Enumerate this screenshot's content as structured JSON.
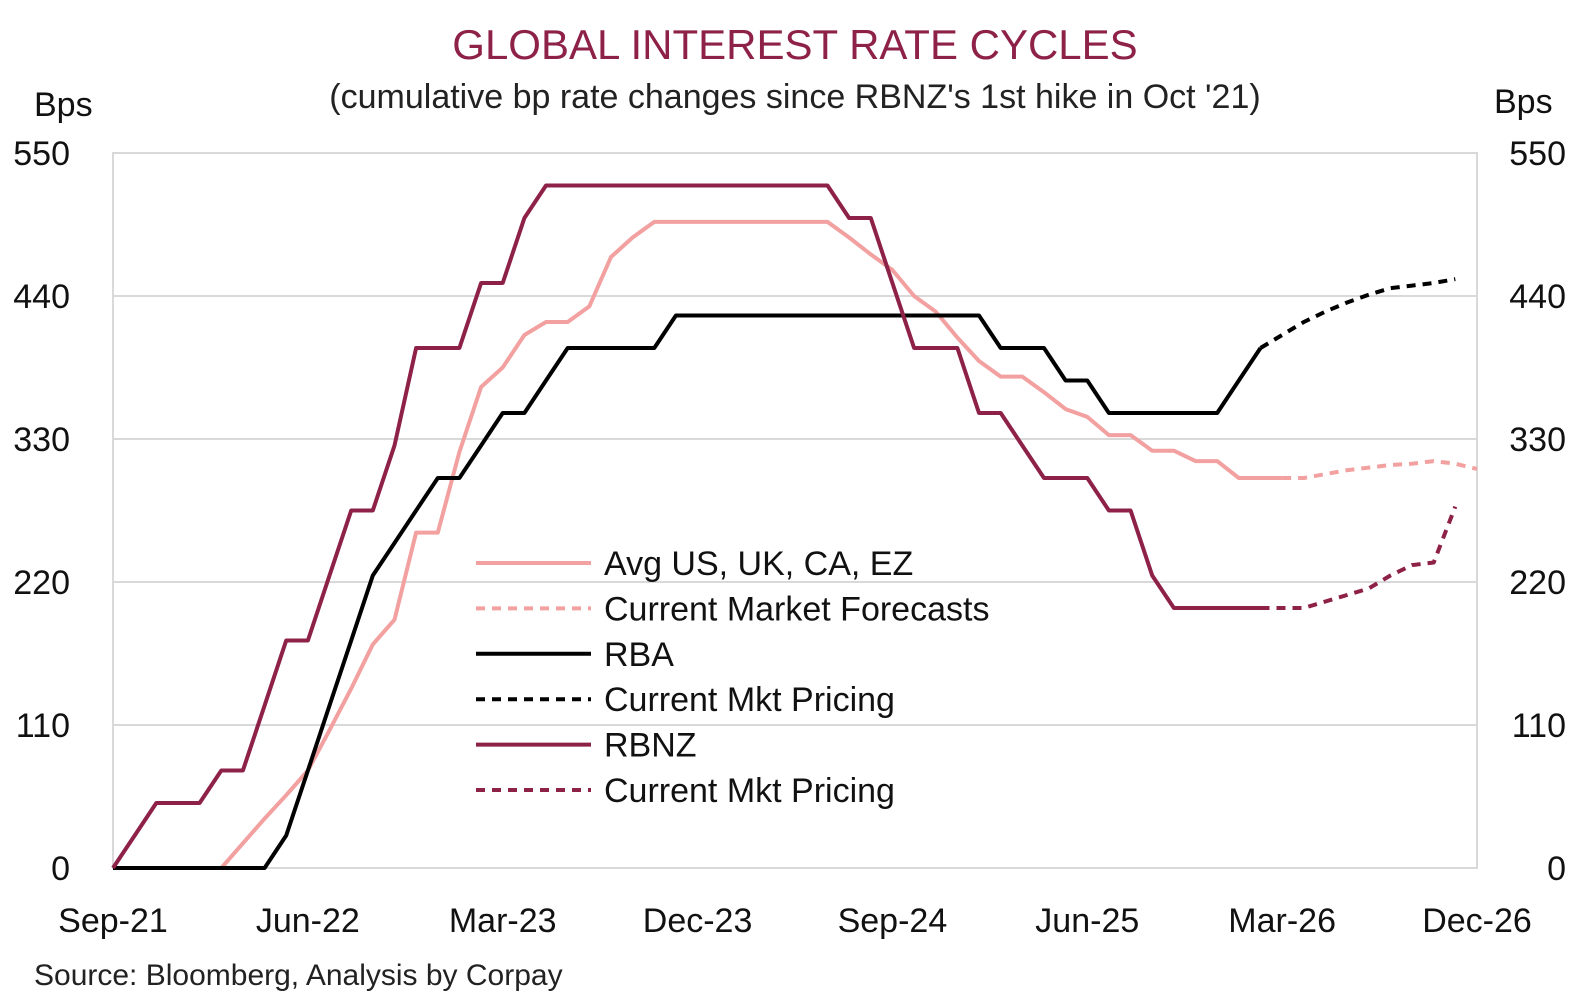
{
  "chart_data": {
    "type": "line",
    "title": "GLOBAL INTEREST RATE CYCLES",
    "subtitle": "(cumulative bp rate changes since RBNZ's 1st hike in Oct '21)",
    "ylabel_left": "Bps",
    "ylabel_right": "Bps",
    "ylim": [
      0,
      550
    ],
    "yticks": [
      0,
      110,
      220,
      330,
      440,
      550
    ],
    "xlim": [
      "2021-09",
      "2026-12"
    ],
    "xticks": [
      "Sep-21",
      "Jun-22",
      "Mar-23",
      "Dec-23",
      "Sep-24",
      "Jun-25",
      "Mar-26",
      "Dec-26"
    ],
    "grid": "horizontal",
    "legend_position": "center",
    "source": "Source: Bloomberg, Analysis by Corpay",
    "colors": {
      "avg": "#f2a0a0",
      "rba": "#000000",
      "rbnz": "#8e2148",
      "title": "#8e2148"
    },
    "series": [
      {
        "name": "Avg US, UK, CA, EZ",
        "style": "solid",
        "color": "#f2a0a0",
        "points": [
          [
            "2021-09",
            0
          ],
          [
            "2022-02",
            0
          ],
          [
            "2022-03",
            19
          ],
          [
            "2022-04",
            38
          ],
          [
            "2022-05",
            56
          ],
          [
            "2022-06",
            75
          ],
          [
            "2022-07",
            106
          ],
          [
            "2022-08",
            138
          ],
          [
            "2022-09",
            172
          ],
          [
            "2022-10",
            191
          ],
          [
            "2022-11",
            258
          ],
          [
            "2022-12",
            258
          ],
          [
            "2023-01",
            320
          ],
          [
            "2023-02",
            370
          ],
          [
            "2023-03",
            385
          ],
          [
            "2023-04",
            410
          ],
          [
            "2023-05",
            420
          ],
          [
            "2023-06",
            420
          ],
          [
            "2023-07",
            432
          ],
          [
            "2023-08",
            470
          ],
          [
            "2023-09",
            485
          ],
          [
            "2023-10",
            497
          ],
          [
            "2023-11",
            497
          ],
          [
            "2023-12",
            497
          ],
          [
            "2024-01",
            497
          ],
          [
            "2024-02",
            497
          ],
          [
            "2024-03",
            497
          ],
          [
            "2024-04",
            497
          ],
          [
            "2024-05",
            497
          ],
          [
            "2024-06",
            497
          ],
          [
            "2024-07",
            485
          ],
          [
            "2024-08",
            472
          ],
          [
            "2024-09",
            460
          ],
          [
            "2024-10",
            440
          ],
          [
            "2024-11",
            428
          ],
          [
            "2024-12",
            408
          ],
          [
            "2025-01",
            390
          ],
          [
            "2025-02",
            378
          ],
          [
            "2025-03",
            378
          ],
          [
            "2025-04",
            366
          ],
          [
            "2025-05",
            353
          ],
          [
            "2025-06",
            347
          ],
          [
            "2025-07",
            333
          ],
          [
            "2025-08",
            333
          ],
          [
            "2025-09",
            321
          ],
          [
            "2025-10",
            321
          ],
          [
            "2025-11",
            313
          ],
          [
            "2025-12",
            313
          ],
          [
            "2026-01",
            300
          ],
          [
            "2026-02",
            300
          ],
          [
            "2026-03",
            300
          ]
        ]
      },
      {
        "name": "Current Market Forecasts",
        "style": "dashed",
        "color": "#f2a0a0",
        "points": [
          [
            "2026-03",
            300
          ],
          [
            "2026-04",
            300
          ],
          [
            "2026-05",
            303
          ],
          [
            "2026-06",
            306
          ],
          [
            "2026-07",
            308
          ],
          [
            "2026-08",
            310
          ],
          [
            "2026-09",
            311
          ],
          [
            "2026-10",
            313
          ],
          [
            "2026-11",
            311
          ],
          [
            "2026-12",
            307
          ]
        ]
      },
      {
        "name": "RBA",
        "style": "solid",
        "color": "#000000",
        "points": [
          [
            "2021-09",
            0
          ],
          [
            "2022-04",
            0
          ],
          [
            "2022-05",
            25
          ],
          [
            "2022-06",
            75
          ],
          [
            "2022-07",
            125
          ],
          [
            "2022-08",
            175
          ],
          [
            "2022-09",
            225
          ],
          [
            "2022-10",
            250
          ],
          [
            "2022-11",
            275
          ],
          [
            "2022-12",
            300
          ],
          [
            "2023-01",
            300
          ],
          [
            "2023-02",
            325
          ],
          [
            "2023-03",
            350
          ],
          [
            "2023-04",
            350
          ],
          [
            "2023-05",
            375
          ],
          [
            "2023-06",
            400
          ],
          [
            "2023-07",
            400
          ],
          [
            "2023-08",
            400
          ],
          [
            "2023-09",
            400
          ],
          [
            "2023-10",
            400
          ],
          [
            "2023-11",
            425
          ],
          [
            "2023-12",
            425
          ],
          [
            "2024-01",
            425
          ],
          [
            "2024-02",
            425
          ],
          [
            "2024-03",
            425
          ],
          [
            "2024-04",
            425
          ],
          [
            "2024-05",
            425
          ],
          [
            "2024-06",
            425
          ],
          [
            "2024-07",
            425
          ],
          [
            "2024-08",
            425
          ],
          [
            "2024-09",
            425
          ],
          [
            "2024-10",
            425
          ],
          [
            "2024-11",
            425
          ],
          [
            "2024-12",
            425
          ],
          [
            "2025-01",
            425
          ],
          [
            "2025-02",
            400
          ],
          [
            "2025-03",
            400
          ],
          [
            "2025-04",
            400
          ],
          [
            "2025-05",
            375
          ],
          [
            "2025-06",
            375
          ],
          [
            "2025-07",
            350
          ],
          [
            "2025-08",
            350
          ],
          [
            "2025-09",
            350
          ],
          [
            "2025-10",
            350
          ],
          [
            "2025-11",
            350
          ],
          [
            "2025-12",
            350
          ],
          [
            "2026-01",
            375
          ],
          [
            "2026-02",
            400
          ]
        ]
      },
      {
        "name": "Current Mkt Pricing",
        "style": "dashed",
        "color": "#000000",
        "points": [
          [
            "2026-02",
            400
          ],
          [
            "2026-03",
            410
          ],
          [
            "2026-04",
            420
          ],
          [
            "2026-05",
            428
          ],
          [
            "2026-06",
            435
          ],
          [
            "2026-07",
            441
          ],
          [
            "2026-08",
            446
          ],
          [
            "2026-09",
            448
          ],
          [
            "2026-10",
            450
          ],
          [
            "2026-11",
            453
          ]
        ]
      },
      {
        "name": "RBNZ",
        "style": "solid",
        "color": "#8e2148",
        "points": [
          [
            "2021-09",
            0
          ],
          [
            "2021-10",
            25
          ],
          [
            "2021-11",
            50
          ],
          [
            "2021-12",
            50
          ],
          [
            "2022-01",
            50
          ],
          [
            "2022-02",
            75
          ],
          [
            "2022-03",
            75
          ],
          [
            "2022-04",
            125
          ],
          [
            "2022-05",
            175
          ],
          [
            "2022-06",
            175
          ],
          [
            "2022-07",
            225
          ],
          [
            "2022-08",
            275
          ],
          [
            "2022-09",
            275
          ],
          [
            "2022-10",
            325
          ],
          [
            "2022-11",
            400
          ],
          [
            "2022-12",
            400
          ],
          [
            "2023-01",
            400
          ],
          [
            "2023-02",
            450
          ],
          [
            "2023-03",
            450
          ],
          [
            "2023-04",
            500
          ],
          [
            "2023-05",
            525
          ],
          [
            "2023-06",
            525
          ],
          [
            "2023-07",
            525
          ],
          [
            "2023-08",
            525
          ],
          [
            "2023-09",
            525
          ],
          [
            "2023-10",
            525
          ],
          [
            "2023-11",
            525
          ],
          [
            "2023-12",
            525
          ],
          [
            "2024-01",
            525
          ],
          [
            "2024-02",
            525
          ],
          [
            "2024-03",
            525
          ],
          [
            "2024-04",
            525
          ],
          [
            "2024-05",
            525
          ],
          [
            "2024-06",
            525
          ],
          [
            "2024-07",
            500
          ],
          [
            "2024-08",
            500
          ],
          [
            "2024-09",
            450
          ],
          [
            "2024-10",
            400
          ],
          [
            "2024-11",
            400
          ],
          [
            "2024-12",
            400
          ],
          [
            "2025-01",
            350
          ],
          [
            "2025-02",
            350
          ],
          [
            "2025-03",
            325
          ],
          [
            "2025-04",
            300
          ],
          [
            "2025-05",
            300
          ],
          [
            "2025-06",
            300
          ],
          [
            "2025-07",
            275
          ],
          [
            "2025-08",
            275
          ],
          [
            "2025-09",
            225
          ],
          [
            "2025-10",
            200
          ],
          [
            "2025-11",
            200
          ],
          [
            "2025-12",
            200
          ],
          [
            "2026-01",
            200
          ],
          [
            "2026-02",
            200
          ]
        ]
      },
      {
        "name": "Current Mkt Pricing",
        "style": "dashed",
        "color": "#8e2148",
        "points": [
          [
            "2026-02",
            200
          ],
          [
            "2026-03",
            200
          ],
          [
            "2026-04",
            200
          ],
          [
            "2026-05",
            205
          ],
          [
            "2026-06",
            210
          ],
          [
            "2026-07",
            215
          ],
          [
            "2026-08",
            225
          ],
          [
            "2026-09",
            233
          ],
          [
            "2026-10",
            235
          ],
          [
            "2026-11",
            278
          ]
        ]
      }
    ]
  }
}
